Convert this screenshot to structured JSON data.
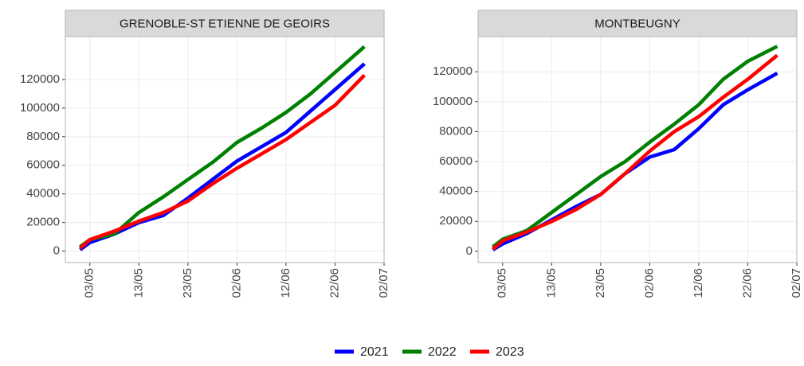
{
  "chart_data": [
    {
      "type": "line",
      "title": "GRENOBLE-ST ETIENNE DE GEOIRS",
      "x": [
        "01/05",
        "03/05",
        "08/05",
        "13/05",
        "18/05",
        "23/05",
        "28/05",
        "02/06",
        "07/06",
        "12/06",
        "17/06",
        "22/06",
        "28/06"
      ],
      "xlim": [
        "28/04",
        "02/07"
      ],
      "xticks": [
        "03/05",
        "13/05",
        "23/05",
        "02/06",
        "12/06",
        "22/06",
        "02/07"
      ],
      "ylim": [
        -8000,
        150000
      ],
      "yticks": [
        0,
        20000,
        40000,
        60000,
        80000,
        100000,
        120000
      ],
      "grid": true,
      "legend": "bottom",
      "series": [
        {
          "name": "2021",
          "color": "#0000ff",
          "values": [
            1000,
            6000,
            12000,
            20000,
            25000,
            37000,
            50000,
            63000,
            73000,
            83000,
            98000,
            113000,
            131000
          ]
        },
        {
          "name": "2022",
          "color": "#008000",
          "values": [
            3000,
            8000,
            12000,
            27000,
            38000,
            50000,
            62000,
            76000,
            86000,
            97000,
            110000,
            125000,
            143000
          ]
        },
        {
          "name": "2023",
          "color": "#ff0000",
          "values": [
            2000,
            8000,
            14000,
            21000,
            27000,
            35000,
            47000,
            58000,
            68000,
            78000,
            90000,
            102000,
            123000
          ]
        }
      ]
    },
    {
      "type": "line",
      "title": "MONTBEUGNY",
      "x": [
        "01/05",
        "03/05",
        "08/05",
        "13/05",
        "18/05",
        "23/05",
        "28/05",
        "02/06",
        "07/06",
        "12/06",
        "17/06",
        "22/06",
        "28/06"
      ],
      "xlim": [
        "28/04",
        "02/07"
      ],
      "xticks": [
        "03/05",
        "13/05",
        "23/05",
        "02/06",
        "12/06",
        "22/06",
        "02/07"
      ],
      "ylim": [
        -7500,
        143500
      ],
      "yticks": [
        0,
        20000,
        40000,
        60000,
        80000,
        100000,
        120000
      ],
      "grid": true,
      "series": [
        {
          "name": "2021",
          "color": "#0000ff",
          "values": [
            1000,
            5000,
            12000,
            21000,
            30000,
            38000,
            52000,
            63000,
            68000,
            82000,
            98000,
            108000,
            119000
          ]
        },
        {
          "name": "2022",
          "color": "#008000",
          "values": [
            3000,
            8000,
            14000,
            26000,
            38000,
            50000,
            60000,
            73000,
            85000,
            98000,
            115000,
            127000,
            137000
          ]
        },
        {
          "name": "2023",
          "color": "#ff0000",
          "values": [
            1500,
            7000,
            13000,
            20000,
            28000,
            38000,
            52000,
            67000,
            80000,
            90000,
            103000,
            115000,
            131000
          ]
        }
      ]
    }
  ]
}
